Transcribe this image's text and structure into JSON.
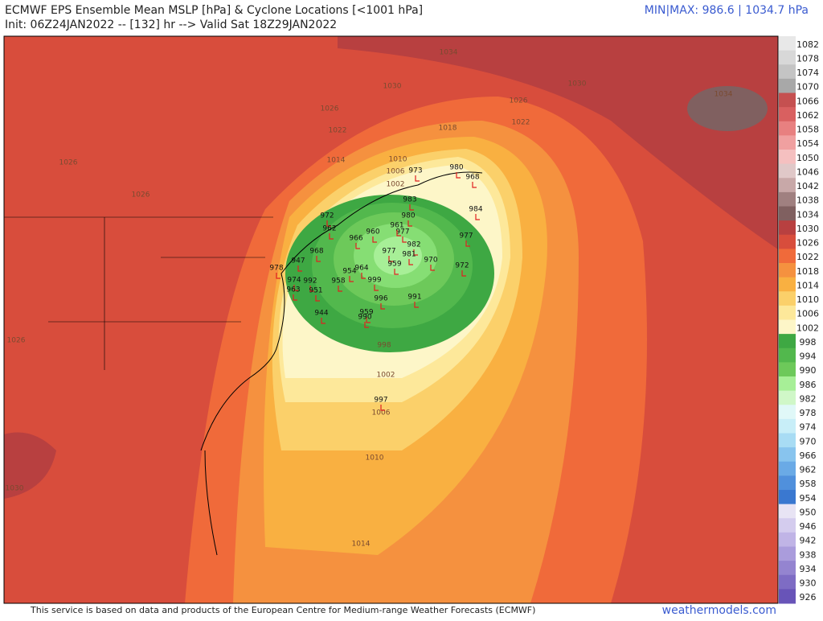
{
  "header": {
    "title": "ECMWF EPS Ensemble Mean MSLP [hPa] & Cyclone Locations [<1001 hPa]",
    "subtitle": "Init: 06Z24JAN2022 -- [132] hr --> Valid Sat 18Z29JAN2022",
    "minmax": "MIN|MAX: 986.6 | 1034.7 hPa"
  },
  "colorbar": {
    "labels": [
      1082,
      1078,
      1074,
      1070,
      1066,
      1062,
      1058,
      1054,
      1050,
      1046,
      1042,
      1038,
      1034,
      1030,
      1026,
      1022,
      1018,
      1014,
      1010,
      1006,
      1002,
      998,
      994,
      990,
      986,
      982,
      978,
      974,
      970,
      966,
      962,
      958,
      954,
      950,
      946,
      942,
      938,
      934,
      930,
      926
    ],
    "colors": [
      "#e8e8e8",
      "#d8d8d8",
      "#c4c4c4",
      "#a8a8a8",
      "#c55050",
      "#d96060",
      "#e88080",
      "#f0a0a0",
      "#f5c0c0",
      "#e0c8c8",
      "#c8a8a8",
      "#a08080",
      "#806060",
      "#b84040",
      "#d84d3c",
      "#f06a3a",
      "#f5913f",
      "#f9b041",
      "#fbd06a",
      "#fde89a",
      "#fdf6c8",
      "#3ea843",
      "#52b84d",
      "#6dc95a",
      "#a7ef97",
      "#d0f7c8",
      "#e0f8f8",
      "#c8eef8",
      "#a8dcf4",
      "#88c4ee",
      "#6aaae6",
      "#5090dc",
      "#3a78d0",
      "#e8e4f4",
      "#d4ccee",
      "#c0b4e6",
      "#aa9cdc",
      "#9484d0",
      "#7e6cc4",
      "#6854b8"
    ]
  },
  "contour_labels": [
    1034,
    1030,
    1030,
    1034,
    1026,
    1026,
    1022,
    1022,
    1018,
    1014,
    1010,
    1006,
    1002,
    1026,
    1026,
    1026,
    1030,
    998,
    1002,
    1006,
    1010,
    1014
  ],
  "cyclones": [
    973,
    980,
    968,
    984,
    977,
    972,
    970,
    983,
    980,
    977,
    982,
    981,
    977,
    959,
    961,
    972,
    962,
    966,
    960,
    978,
    947,
    968,
    974,
    992,
    963,
    951,
    958,
    954,
    964,
    999,
    996,
    991,
    944,
    959,
    990,
    997
  ],
  "footer": {
    "credit": "This service is based on data and products of the European Centre for Medium-range Weather Forecasts (ECMWF)",
    "site": "weathermodels.com"
  }
}
